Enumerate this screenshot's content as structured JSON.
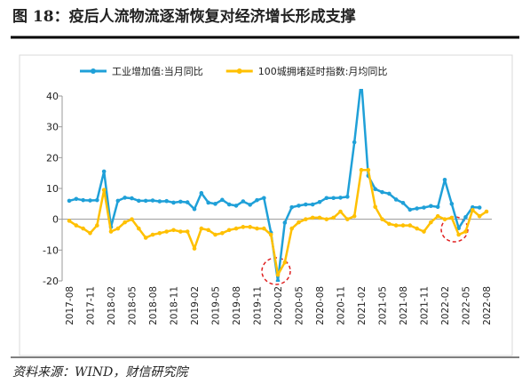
{
  "chart_data": {
    "type": "line",
    "title": "图 18：疫后人流物流逐渐恢复对经济增长形成支撑",
    "source": "资料来源：WIND，财信研究院",
    "categories": [
      "2017-08",
      null,
      null,
      "2017-11",
      null,
      null,
      "2018-02",
      null,
      null,
      "2018-05",
      null,
      null,
      "2018-08",
      null,
      null,
      "2018-11",
      null,
      null,
      "2019-02",
      null,
      null,
      "2019-05",
      null,
      null,
      "2019-08",
      null,
      null,
      "2019-11",
      null,
      null,
      "2020-02",
      null,
      null,
      "2020-05",
      null,
      null,
      "2020-08",
      null,
      null,
      "2020-11",
      null,
      null,
      "2021-02",
      null,
      null,
      "2021-05",
      null,
      null,
      "2021-08",
      null,
      null,
      "2021-11",
      null,
      null,
      "2022-02",
      null,
      null,
      "2022-05",
      null,
      null,
      "2022-08"
    ],
    "series": [
      {
        "name": "工业增加值:当月同比",
        "color": "#1fa0d8",
        "values": [
          6.0,
          6.6,
          6.2,
          6.1,
          6.2,
          15.5,
          -2.5,
          6.0,
          7.0,
          6.8,
          6.0,
          6.0,
          6.1,
          5.8,
          5.9,
          5.4,
          5.7,
          5.5,
          3.3,
          8.5,
          5.4,
          5.0,
          6.3,
          4.8,
          4.4,
          5.8,
          4.7,
          6.2,
          6.9,
          -4.3,
          -20,
          -1.1,
          3.9,
          4.4,
          4.8,
          4.8,
          5.6,
          6.9,
          6.9,
          7.0,
          7.3,
          25,
          45,
          14.1,
          9.8,
          8.8,
          8.3,
          6.4,
          5.3,
          3.1,
          3.5,
          3.8,
          4.3,
          4.0,
          12.8,
          5.0,
          -2.9,
          0.7,
          3.9,
          3.8,
          null
        ]
      },
      {
        "name": "100城拥堵延时指数:月均同比",
        "color": "#ffc000",
        "values": [
          -0.5,
          -2,
          -3,
          -4.5,
          -2,
          9.5,
          -4,
          -3,
          -1,
          0,
          -3,
          -6,
          -5,
          -4.5,
          -4,
          -3.5,
          -4,
          -4,
          -9.5,
          -3,
          -3.5,
          -5,
          -4.5,
          -3.5,
          -3,
          -2.5,
          -2.5,
          -3,
          -3,
          -5,
          -18,
          -14,
          -3,
          -1,
          0,
          0.5,
          0.5,
          0,
          0.5,
          2.5,
          0,
          1,
          16,
          16,
          4,
          0,
          -1.5,
          -2,
          -2,
          -2,
          -3,
          -4,
          -1,
          1,
          0,
          0.5,
          -5,
          -4,
          3,
          1,
          2.5
        ]
      }
    ],
    "ylim": [
      -20,
      40
    ],
    "yticks": [
      -20,
      -10,
      0,
      10,
      20,
      30,
      40
    ],
    "grid": false,
    "legend": "top"
  }
}
